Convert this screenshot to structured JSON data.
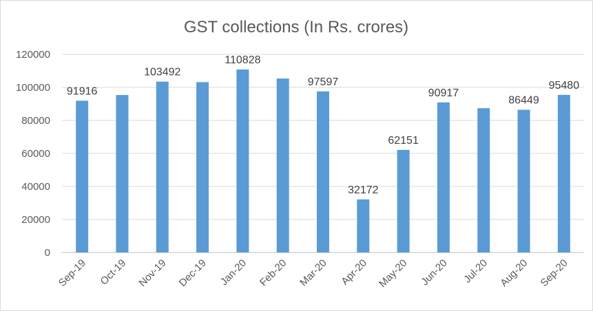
{
  "chart_data": {
    "type": "bar",
    "title": "GST collections (In Rs. crores)",
    "xlabel": "",
    "ylabel": "",
    "categories": [
      "Sep-19",
      "Oct-19",
      "Nov-19",
      "Dec-19",
      "Jan-20",
      "Feb-20",
      "Mar-20",
      "Apr-20",
      "May-20",
      "Jun-20",
      "Jul-20",
      "Aug-20",
      "Sep-20"
    ],
    "values": [
      91916,
      95380,
      103492,
      103184,
      110828,
      105366,
      97597,
      32172,
      62151,
      90917,
      87422,
      86449,
      95480
    ],
    "data_labels": [
      "91916",
      "",
      "103492",
      "",
      "110828",
      "",
      "97597",
      "32172",
      "62151",
      "90917",
      "",
      "86449",
      "95480"
    ],
    "ylim": [
      0,
      120000
    ],
    "yticks": [
      "0",
      "20000",
      "40000",
      "60000",
      "80000",
      "100000",
      "120000"
    ],
    "grid": true,
    "legend": "none",
    "bar_color": "#5b9bd5"
  }
}
